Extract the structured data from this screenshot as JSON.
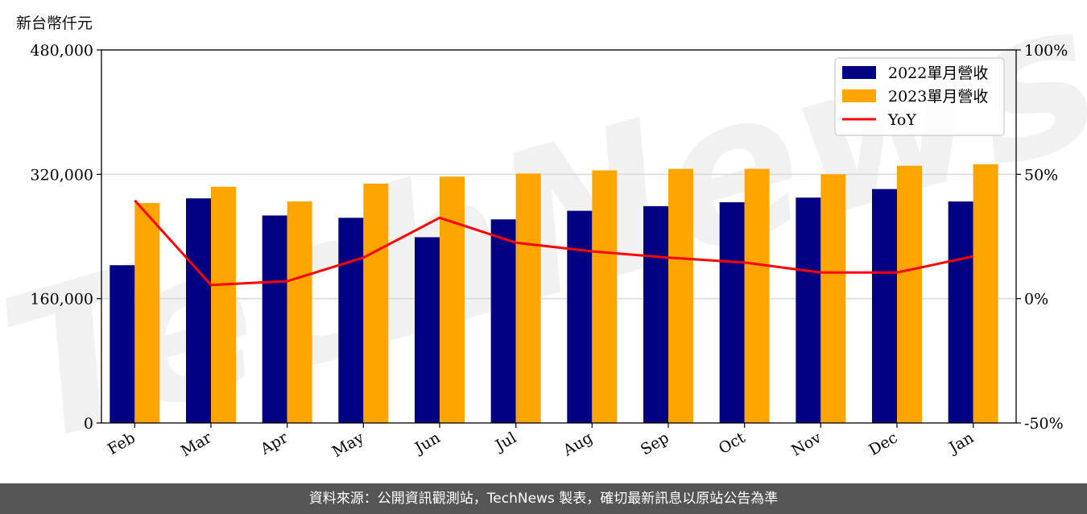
{
  "unit_label": "新台幣仟元",
  "watermark": "TechNews",
  "footer": "資料來源：公開資訊觀測站，TechNews 製表，確切最新訊息以原站公告為準",
  "colors": {
    "series_2022": "#000080",
    "series_2023": "#FFA500",
    "yoy": "#FF0000",
    "grid": "#d9d9d9",
    "watermark": "#d0d0d0",
    "footer_bg": "#555555"
  },
  "chart_data": {
    "type": "bar",
    "categories": [
      "Feb",
      "Mar",
      "Apr",
      "May",
      "Jun",
      "Jul",
      "Aug",
      "Sep",
      "Oct",
      "Nov",
      "Dec",
      "Jan"
    ],
    "series": [
      {
        "name": "2022單月營收",
        "values": [
          203000,
          289000,
          267000,
          264000,
          239000,
          262000,
          273000,
          279000,
          284000,
          290000,
          301000,
          285000
        ]
      },
      {
        "name": "2023單月營收",
        "values": [
          283000,
          304000,
          285000,
          308000,
          317000,
          321000,
          325000,
          327000,
          327000,
          320000,
          331000,
          333000
        ]
      }
    ],
    "line_series": {
      "name": "YoY",
      "axis": "right",
      "unit": "%",
      "values": [
        39.5,
        5.5,
        7,
        16.5,
        32.5,
        22.5,
        19,
        16.5,
        14.5,
        10.5,
        10.5,
        17
      ]
    },
    "ylim": [
      0,
      480000
    ],
    "yticks": [
      0,
      160000,
      320000,
      480000
    ],
    "ytick_labels": [
      "0",
      "160,000",
      "320,000",
      "480,000"
    ],
    "y2lim": [
      -50,
      100
    ],
    "y2ticks": [
      -50,
      0,
      50,
      100
    ],
    "y2tick_labels": [
      "-50%",
      "0%",
      "50%",
      "100%"
    ],
    "grid": "horizontal at left-axis ticks",
    "legend": {
      "placement": "top-right",
      "entries": [
        "2022單月營收",
        "2023單月營收",
        "YoY"
      ]
    },
    "xlabel": "",
    "ylabel": ""
  }
}
